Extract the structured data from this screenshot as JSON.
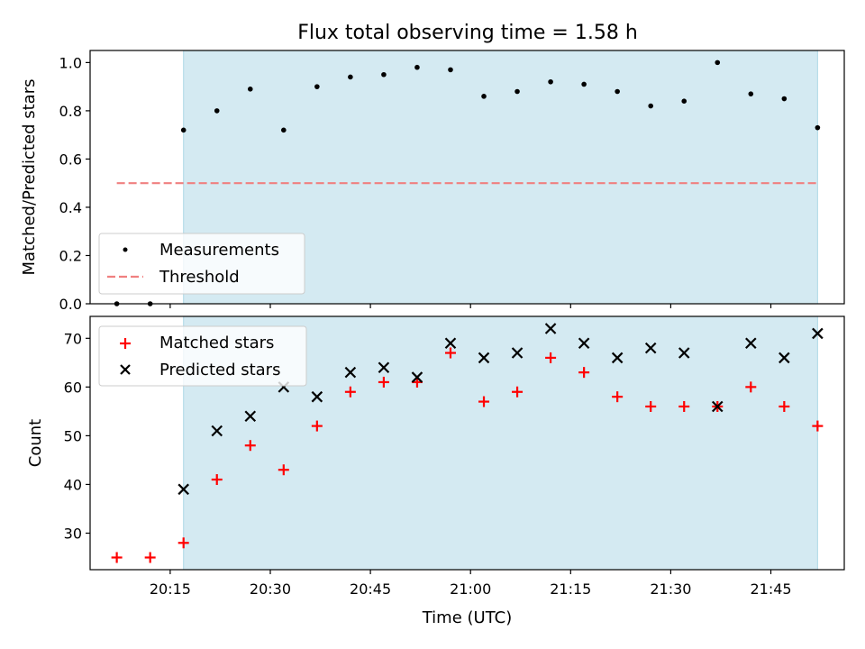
{
  "chart_data": [
    {
      "type": "scatter",
      "title": "Flux total observing time = 1.58 h",
      "xlabel": "",
      "ylabel": "Matched/Predicted stars",
      "ylim": [
        0,
        1.05
      ],
      "yticks": [
        "0.0",
        "0.2",
        "0.4",
        "0.6",
        "0.8",
        "1.0"
      ],
      "ytick_values": [
        0,
        0.2,
        0.4,
        0.6,
        0.8,
        1.0
      ],
      "x_range": [
        "20:03",
        "21:56"
      ],
      "shaded_span": [
        "20:17",
        "21:52"
      ],
      "threshold": {
        "value": 0.5,
        "x_start": "20:07",
        "x_end": "21:52"
      },
      "legend_position": "lower-left",
      "series": [
        {
          "name": "Measurements",
          "marker": "dot",
          "color": "#000000",
          "x": [
            "20:07",
            "20:12",
            "20:17",
            "20:22",
            "20:27",
            "20:32",
            "20:37",
            "20:42",
            "20:47",
            "20:52",
            "20:57",
            "21:02",
            "21:07",
            "21:12",
            "21:17",
            "21:22",
            "21:27",
            "21:32",
            "21:37",
            "21:42",
            "21:47",
            "21:52"
          ],
          "y": [
            0.0,
            0.0,
            0.72,
            0.8,
            0.89,
            0.72,
            0.9,
            0.94,
            0.95,
            0.98,
            0.97,
            0.86,
            0.88,
            0.92,
            0.91,
            0.88,
            0.82,
            0.84,
            1.0,
            0.87,
            0.85,
            0.73
          ]
        },
        {
          "name": "Threshold",
          "marker": "dashed-line",
          "color": "#f08080"
        }
      ]
    },
    {
      "type": "scatter",
      "title": "",
      "xlabel": "Time (UTC)",
      "ylabel": "Count",
      "ylim": [
        22.5,
        74.5
      ],
      "yticks": [
        "30",
        "40",
        "50",
        "60",
        "70"
      ],
      "ytick_values": [
        30,
        40,
        50,
        60,
        70
      ],
      "xticks": [
        "20:15",
        "20:30",
        "20:45",
        "21:00",
        "21:15",
        "21:30",
        "21:45"
      ],
      "x_range": [
        "20:03",
        "21:56"
      ],
      "shaded_span": [
        "20:17",
        "21:52"
      ],
      "legend_position": "upper-left",
      "series": [
        {
          "name": "Matched stars",
          "marker": "plus",
          "color": "#ff0000",
          "x": [
            "20:07",
            "20:12",
            "20:17",
            "20:22",
            "20:27",
            "20:32",
            "20:37",
            "20:42",
            "20:47",
            "20:52",
            "20:57",
            "21:02",
            "21:07",
            "21:12",
            "21:17",
            "21:22",
            "21:27",
            "21:32",
            "21:37",
            "21:42",
            "21:47",
            "21:52"
          ],
          "y": [
            25,
            25,
            28,
            41,
            48,
            43,
            52,
            59,
            61,
            61,
            67,
            57,
            59,
            66,
            63,
            58,
            56,
            56,
            56,
            60,
            56,
            52
          ]
        },
        {
          "name": "Predicted stars",
          "marker": "x",
          "color": "#000000",
          "x": [
            "20:17",
            "20:22",
            "20:27",
            "20:32",
            "20:37",
            "20:42",
            "20:47",
            "20:52",
            "20:57",
            "21:02",
            "21:07",
            "21:12",
            "21:17",
            "21:22",
            "21:27",
            "21:32",
            "21:37",
            "21:42",
            "21:47",
            "21:52"
          ],
          "y": [
            39,
            51,
            54,
            60,
            58,
            63,
            64,
            62,
            69,
            66,
            67,
            72,
            69,
            66,
            68,
            67,
            56,
            69,
            66,
            71
          ]
        }
      ]
    }
  ],
  "colors": {
    "shade": "#add8e6",
    "threshold": "#f08080",
    "matched": "#ff0000",
    "predicted": "#000000",
    "measurements": "#000000"
  }
}
